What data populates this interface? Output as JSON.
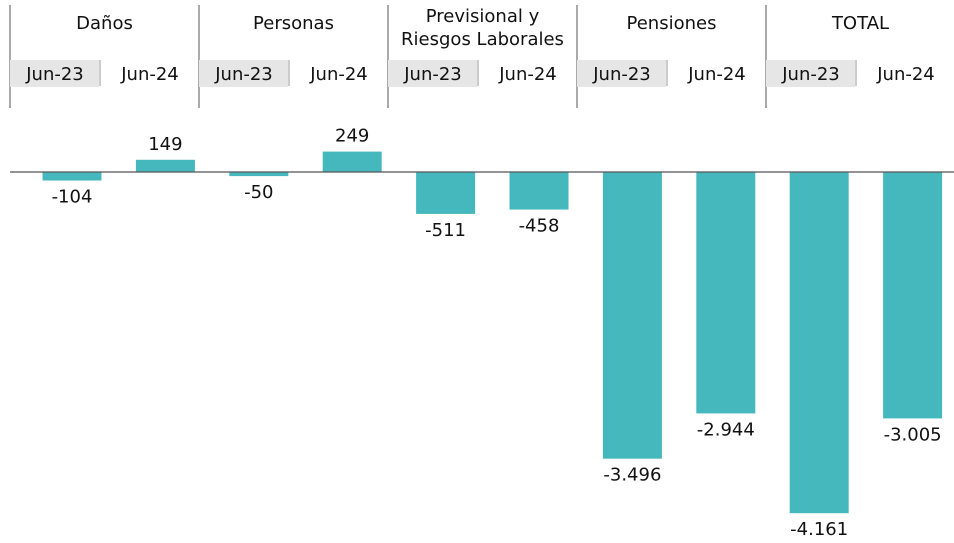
{
  "chart_data": {
    "type": "bar",
    "groups": [
      "Daños",
      "Personas",
      "Previsional y Riesgos Laborales",
      "Pensiones",
      "TOTAL"
    ],
    "categories": [
      "Jun-23",
      "Jun-24",
      "Jun-23",
      "Jun-24",
      "Jun-23",
      "Jun-24",
      "Jun-23",
      "Jun-24",
      "Jun-23",
      "Jun-24"
    ],
    "values": [
      -104,
      149,
      -50,
      249,
      -511,
      -458,
      -3496,
      -2944,
      -4161,
      -3005
    ],
    "value_labels": [
      "-104",
      "149",
      "-50",
      "249",
      "-511",
      "-458",
      "-3.496",
      "-2.944",
      "-4.161",
      "-3.005"
    ],
    "color": "#45b8bd",
    "highlight_color": "#e6e6e6"
  }
}
